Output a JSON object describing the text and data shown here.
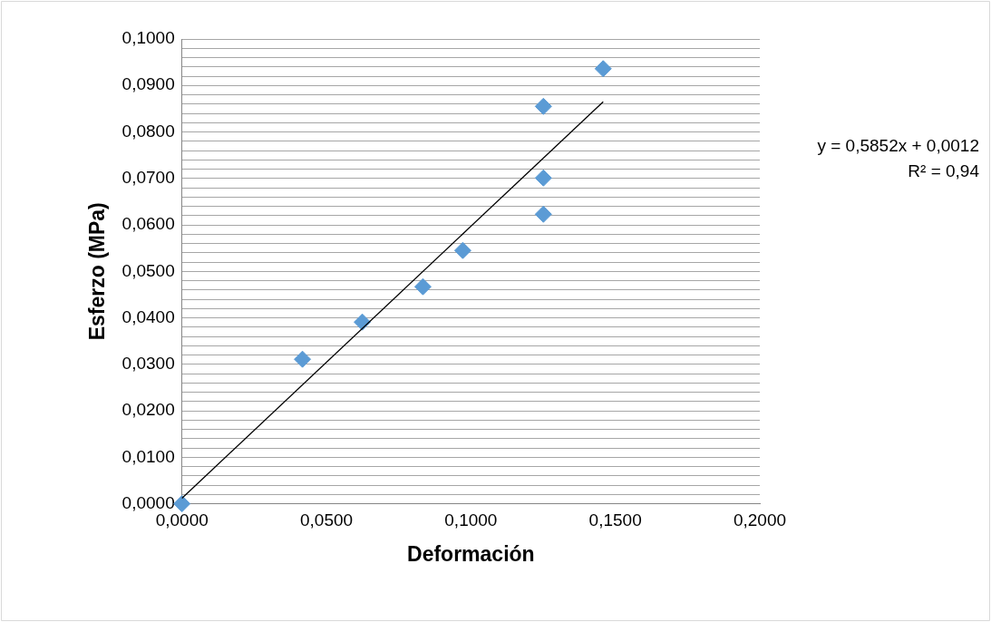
{
  "chart_data": {
    "type": "scatter",
    "xlabel": "Deformación",
    "ylabel": "Esferzo (MPa)",
    "series": [
      {
        "type": "scatter",
        "color": "#5b9bd5",
        "marker": "diamond",
        "x": [
          0,
          0.0417,
          0.0624,
          0.0834,
          0.0972,
          0.1251,
          0.1251,
          0.1251,
          0.1458
        ],
        "values": [
          0,
          0.0311,
          0.0391,
          0.0467,
          0.0545,
          0.0855,
          0.0701,
          0.0623,
          0.0936
        ]
      },
      {
        "type": "line",
        "color": "#000000",
        "marker": "none",
        "x": [
          0,
          0.1458
        ],
        "values": [
          0.0012,
          0.0865
        ]
      }
    ],
    "xlim": [
      0,
      0.2
    ],
    "xticks": [
      {
        "value": 0,
        "label": "0,0000"
      },
      {
        "value": 0.05,
        "label": "0,0500"
      },
      {
        "value": 0.1,
        "label": "0,1000"
      },
      {
        "value": 0.15,
        "label": "0,1500"
      },
      {
        "value": 0.2,
        "label": "0,2000"
      }
    ],
    "ylim": [
      0,
      0.1
    ],
    "yticks": [
      {
        "value": 0,
        "label": "0,0000"
      },
      {
        "value": 0.002,
        "label": null
      },
      {
        "value": 0.004,
        "label": null
      },
      {
        "value": 0.006,
        "label": null
      },
      {
        "value": 0.008,
        "label": null
      },
      {
        "value": 0.01,
        "label": "0,0100"
      },
      {
        "value": 0.012,
        "label": null
      },
      {
        "value": 0.014,
        "label": null
      },
      {
        "value": 0.016,
        "label": null
      },
      {
        "value": 0.018,
        "label": null
      },
      {
        "value": 0.02,
        "label": "0,0200"
      },
      {
        "value": 0.022,
        "label": null
      },
      {
        "value": 0.024,
        "label": null
      },
      {
        "value": 0.026,
        "label": null
      },
      {
        "value": 0.028,
        "label": null
      },
      {
        "value": 0.03,
        "label": "0,0300"
      },
      {
        "value": 0.032,
        "label": null
      },
      {
        "value": 0.034,
        "label": null
      },
      {
        "value": 0.036,
        "label": null
      },
      {
        "value": 0.038,
        "label": null
      },
      {
        "value": 0.04,
        "label": "0,0400"
      },
      {
        "value": 0.042,
        "label": null
      },
      {
        "value": 0.044,
        "label": null
      },
      {
        "value": 0.046,
        "label": null
      },
      {
        "value": 0.048,
        "label": null
      },
      {
        "value": 0.05,
        "label": "0,0500"
      },
      {
        "value": 0.052,
        "label": null
      },
      {
        "value": 0.054,
        "label": null
      },
      {
        "value": 0.056,
        "label": null
      },
      {
        "value": 0.058,
        "label": null
      },
      {
        "value": 0.06,
        "label": "0,0600"
      },
      {
        "value": 0.062,
        "label": null
      },
      {
        "value": 0.064,
        "label": null
      },
      {
        "value": 0.066,
        "label": null
      },
      {
        "value": 0.068,
        "label": null
      },
      {
        "value": 0.07,
        "label": "0,0700"
      },
      {
        "value": 0.072,
        "label": null
      },
      {
        "value": 0.074,
        "label": null
      },
      {
        "value": 0.076,
        "label": null
      },
      {
        "value": 0.078,
        "label": null
      },
      {
        "value": 0.08,
        "label": "0,0800"
      },
      {
        "value": 0.082,
        "label": null
      },
      {
        "value": 0.084,
        "label": null
      },
      {
        "value": 0.086,
        "label": null
      },
      {
        "value": 0.088,
        "label": null
      },
      {
        "value": 0.09,
        "label": "0,0900"
      },
      {
        "value": 0.092,
        "label": null
      },
      {
        "value": 0.094,
        "label": null
      },
      {
        "value": 0.096,
        "label": null
      },
      {
        "value": 0.098,
        "label": null
      },
      {
        "value": 0.1,
        "label": "0,1000"
      }
    ],
    "grid": "y",
    "legend": false,
    "annotations": [
      "y = 0,5852x + 0,0012\nR² = 0,94"
    ]
  }
}
